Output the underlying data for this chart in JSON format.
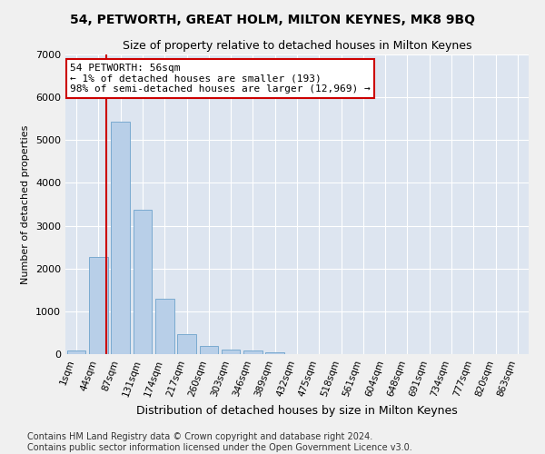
{
  "title": "54, PETWORTH, GREAT HOLM, MILTON KEYNES, MK8 9BQ",
  "subtitle": "Size of property relative to detached houses in Milton Keynes",
  "xlabel": "Distribution of detached houses by size in Milton Keynes",
  "ylabel": "Number of detached properties",
  "categories": [
    "1sqm",
    "44sqm",
    "87sqm",
    "131sqm",
    "174sqm",
    "217sqm",
    "260sqm",
    "303sqm",
    "346sqm",
    "389sqm",
    "432sqm",
    "475sqm",
    "518sqm",
    "561sqm",
    "604sqm",
    "648sqm",
    "691sqm",
    "734sqm",
    "777sqm",
    "820sqm",
    "863sqm"
  ],
  "values": [
    75,
    2280,
    5420,
    3380,
    1300,
    460,
    200,
    110,
    75,
    50,
    0,
    0,
    0,
    0,
    0,
    0,
    0,
    0,
    0,
    0,
    0
  ],
  "bar_color": "#b8cfe8",
  "bar_edge_color": "#7aaad0",
  "vline_x": 1.35,
  "vline_color": "#cc0000",
  "annotation_text": "54 PETWORTH: 56sqm\n← 1% of detached houses are smaller (193)\n98% of semi-detached houses are larger (12,969) →",
  "annotation_box_color": "#ffffff",
  "annotation_box_edge": "#cc0000",
  "ylim": [
    0,
    7000
  ],
  "yticks": [
    0,
    1000,
    2000,
    3000,
    4000,
    5000,
    6000,
    7000
  ],
  "footer": "Contains HM Land Registry data © Crown copyright and database right 2024.\nContains public sector information licensed under the Open Government Licence v3.0.",
  "bg_color": "#dde5f0",
  "grid_color": "#ffffff",
  "fig_bg_color": "#f0f0f0",
  "title_fontsize": 10,
  "subtitle_fontsize": 9,
  "footer_fontsize": 7,
  "annot_fontsize": 8
}
